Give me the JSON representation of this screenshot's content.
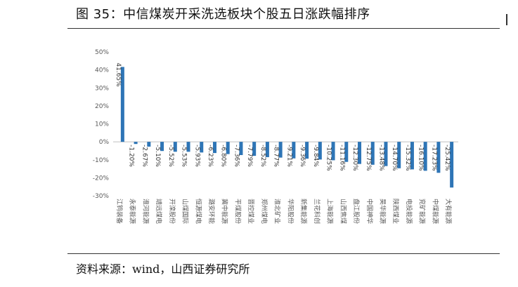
{
  "header": {
    "title": "图 35：中信煤炭开采洗选板块个股五日涨跌幅排序"
  },
  "footer": {
    "source": "资料来源：wind，山西证券研究所"
  },
  "colors": {
    "bar": "#2E75B6",
    "axis_text": "#595959",
    "zero_line": "#BFBFBF"
  },
  "chart_data": {
    "type": "bar",
    "title": "",
    "xlabel": "",
    "ylabel": "",
    "ylim": [
      -30,
      50
    ],
    "yticks": [
      50,
      40,
      30,
      20,
      10,
      0,
      -10,
      -20,
      -30
    ],
    "ytick_labels": [
      "50%",
      "40%",
      "30%",
      "20%",
      "10%",
      "0%",
      "-10%",
      "-20%",
      "-30%"
    ],
    "categories": [
      "江钨装备",
      "永泰能源",
      "淮河能源",
      "靖远煤电",
      "开滦股份",
      "山煤国际",
      "恒源煤电",
      "潞安环能",
      "冀中能源",
      "平煤股份",
      "晋控煤业",
      "郑州煤电",
      "淮北矿业",
      "华阳股份",
      "新集能源",
      "兰花科创",
      "上海能源",
      "山西焦煤",
      "盘江股份",
      "中国神华",
      "昊华能源",
      "陕西煤业",
      "电投能源",
      "兖矿能源",
      "中煤能源",
      "大有能源"
    ],
    "values": [
      41.65,
      -1.2,
      -2.67,
      -5.1,
      -5.52,
      -5.53,
      -5.93,
      -6.23,
      -6.8,
      -7.36,
      -7.79,
      -8.52,
      -8.77,
      -9.21,
      -9.36,
      -9.84,
      -10.25,
      -11.16,
      -12.3,
      -12.75,
      -13.48,
      -14.7,
      -15.32,
      -16.1,
      -17.23,
      -25.42
    ],
    "data_labels": [
      "41.65%",
      "-1.20%",
      "-2.67%",
      "-5.10%",
      "-5.52%",
      "-5.53%",
      "-5.93%",
      "-6.23%",
      "-6.80%",
      "-7.36%",
      "-7.79%",
      "-8.52%",
      "-8.77%",
      "-9.21%",
      "-9.36%",
      "-9.84%",
      "-10.25%",
      "-11.16%",
      "-12.30%",
      "-12.75%",
      "-13.48%",
      "-14.70%",
      "-15.32%",
      "-16.10%",
      "-17.23%",
      "-25.42%"
    ],
    "grid": false,
    "legend": "none"
  }
}
